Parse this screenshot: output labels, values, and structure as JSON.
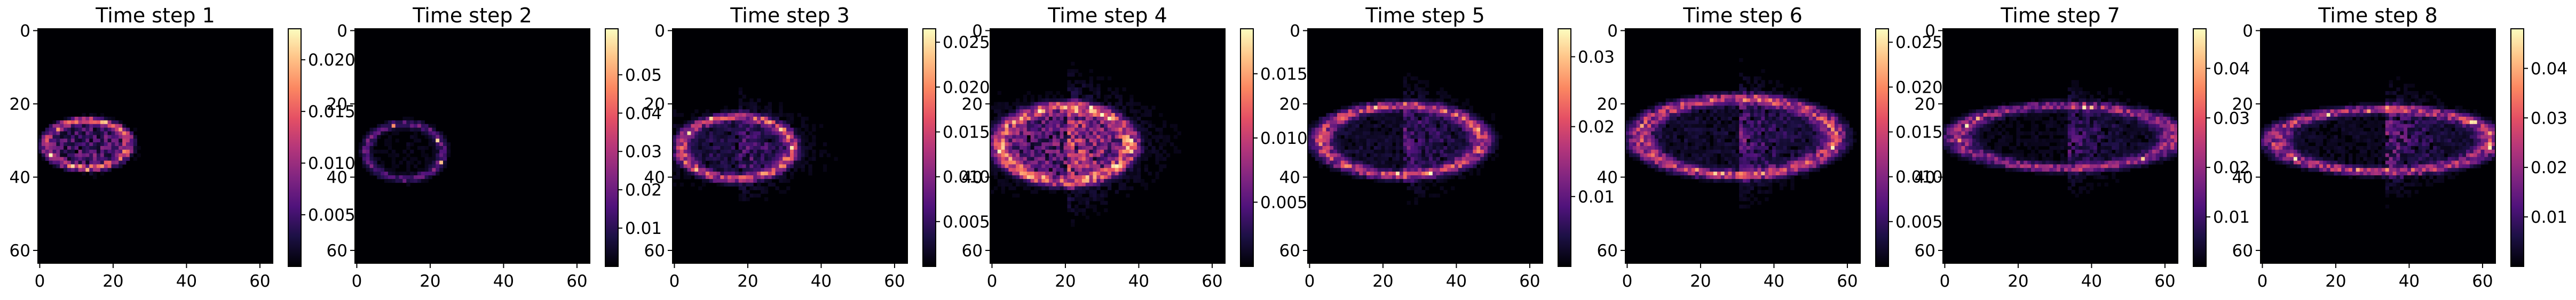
{
  "figure": {
    "layout": "1 row x 8 heatmap panels, each with its own vertical colorbar on the right",
    "colormap": "magma",
    "colormap_stops": [
      "#000004",
      "#1c1044",
      "#4f127b",
      "#812581",
      "#b5367a",
      "#e55064",
      "#fb8761",
      "#fec287",
      "#fcfdbf"
    ]
  },
  "chart_data": [
    {
      "type": "heatmap",
      "title": "Time step 1",
      "grid_size": 64,
      "xticks": [
        "0",
        "20",
        "40",
        "60"
      ],
      "yticks": [
        "0",
        "20",
        "40",
        "60"
      ],
      "colorbar": {
        "min": 0.0,
        "max": 0.023,
        "ticks": [
          "0.005",
          "0.010",
          "0.015",
          "0.020"
        ],
        "tick_values": [
          0.005,
          0.01,
          0.015,
          0.02
        ]
      }
    },
    {
      "type": "heatmap",
      "title": "Time step 2",
      "grid_size": 64,
      "xticks": [
        "0",
        "20",
        "40",
        "60"
      ],
      "yticks": [
        "0",
        "20",
        "40",
        "60"
      ],
      "colorbar": {
        "min": 0.0,
        "max": 0.062,
        "ticks": [
          "0.01",
          "0.02",
          "0.03",
          "0.04",
          "0.05"
        ],
        "tick_values": [
          0.01,
          0.02,
          0.03,
          0.04,
          0.05
        ]
      }
    },
    {
      "type": "heatmap",
      "title": "Time step 3",
      "grid_size": 64,
      "xticks": [
        "0",
        "20",
        "40",
        "60"
      ],
      "yticks": [
        "0",
        "20",
        "40",
        "60"
      ],
      "colorbar": {
        "min": 0.0,
        "max": 0.0265,
        "ticks": [
          "0.005",
          "0.010",
          "0.015",
          "0.020",
          "0.025"
        ],
        "tick_values": [
          0.005,
          0.01,
          0.015,
          0.02,
          0.025
        ]
      }
    },
    {
      "type": "heatmap",
      "title": "Time step 4",
      "grid_size": 64,
      "xticks": [
        "0",
        "20",
        "40",
        "60"
      ],
      "yticks": [
        "0",
        "20",
        "40",
        "60"
      ],
      "colorbar": {
        "min": 0.0,
        "max": 0.0185,
        "ticks": [
          "0.005",
          "0.010",
          "0.015"
        ],
        "tick_values": [
          0.005,
          0.01,
          0.015
        ]
      }
    },
    {
      "type": "heatmap",
      "title": "Time step 5",
      "grid_size": 64,
      "xticks": [
        "0",
        "20",
        "40",
        "60"
      ],
      "yticks": [
        "0",
        "20",
        "40",
        "60"
      ],
      "colorbar": {
        "min": 0.0,
        "max": 0.034,
        "ticks": [
          "0.01",
          "0.02",
          "0.03"
        ],
        "tick_values": [
          0.01,
          0.02,
          0.03
        ]
      }
    },
    {
      "type": "heatmap",
      "title": "Time step 6",
      "grid_size": 64,
      "xticks": [
        "0",
        "20",
        "40",
        "60"
      ],
      "yticks": [
        "0",
        "20",
        "40",
        "60"
      ],
      "colorbar": {
        "min": 0.0,
        "max": 0.0265,
        "ticks": [
          "0.005",
          "0.010",
          "0.015",
          "0.020",
          "0.025"
        ],
        "tick_values": [
          0.005,
          0.01,
          0.015,
          0.02,
          0.025
        ]
      }
    },
    {
      "type": "heatmap",
      "title": "Time step 7",
      "grid_size": 64,
      "xticks": [
        "0",
        "20",
        "40",
        "60"
      ],
      "yticks": [
        "0",
        "20",
        "40",
        "60"
      ],
      "colorbar": {
        "min": 0.0,
        "max": 0.048,
        "ticks": [
          "0.01",
          "0.02",
          "0.03",
          "0.04"
        ],
        "tick_values": [
          0.01,
          0.02,
          0.03,
          0.04
        ]
      }
    },
    {
      "type": "heatmap",
      "title": "Time step 8",
      "grid_size": 64,
      "xticks": [
        "0",
        "20",
        "40",
        "60"
      ],
      "yticks": [
        "0",
        "20",
        "40",
        "60"
      ],
      "colorbar": {
        "min": 0.0,
        "max": 0.048,
        "ticks": [
          "0.01",
          "0.02",
          "0.03",
          "0.04"
        ],
        "tick_values": [
          0.01,
          0.02,
          0.03,
          0.04
        ]
      }
    }
  ]
}
